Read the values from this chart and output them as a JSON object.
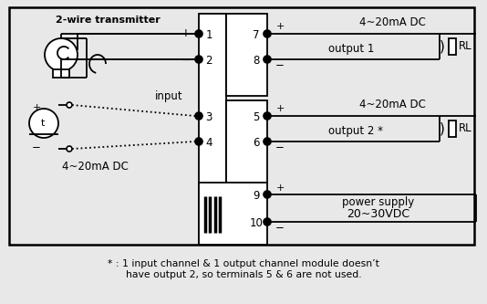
{
  "bg_color": "#e8e8e8",
  "diagram_bg": "#ffffff",
  "line_color": "#000000",
  "title_note": "* : 1 input channel & 1 output channel module doesn’t\nhave output 2, so terminals 5 & 6 are not used.",
  "label_2wire": "2-wire transmitter",
  "label_input": "input",
  "label_4_20_input": "4~20mA DC",
  "label_output1_v": "4~20mA DC",
  "label_output1": "output 1",
  "label_output2_v": "4~20mA DC",
  "label_output2": "output 2 *",
  "label_power_line1": "power supply",
  "label_power_line2": "20~30VDC",
  "label_RL": "RL",
  "plus": "+",
  "minus": "−"
}
